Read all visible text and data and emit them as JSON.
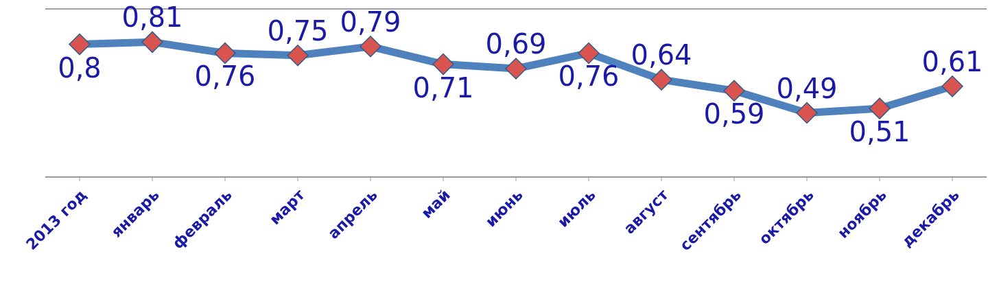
{
  "chart_data": {
    "type": "line",
    "categories": [
      "2013 год",
      "январь",
      "февраль",
      "март",
      "апрель",
      "май",
      "июнь",
      "июль",
      "август",
      "сентябрь",
      "октябрь",
      "ноябрь",
      "декабрь"
    ],
    "series": [
      {
        "color": "#4f81bd",
        "values": [
          0.8,
          0.81,
          0.76,
          0.75,
          0.79,
          0.71,
          0.69,
          0.76,
          0.64,
          0.59,
          0.49,
          0.51,
          0.61
        ],
        "value_labels": [
          "0,8",
          "0,81",
          "0,76",
          "0,75",
          "0,79",
          "0,71",
          "0,69",
          "0,76",
          "0,64",
          "0,59",
          "0,49",
          "0,51",
          "0,61"
        ]
      }
    ],
    "ylim": [
      0.2,
      0.96
    ],
    "grid": "y",
    "tick_labels": "x",
    "marker": "diamond",
    "line_style": "solid"
  }
}
